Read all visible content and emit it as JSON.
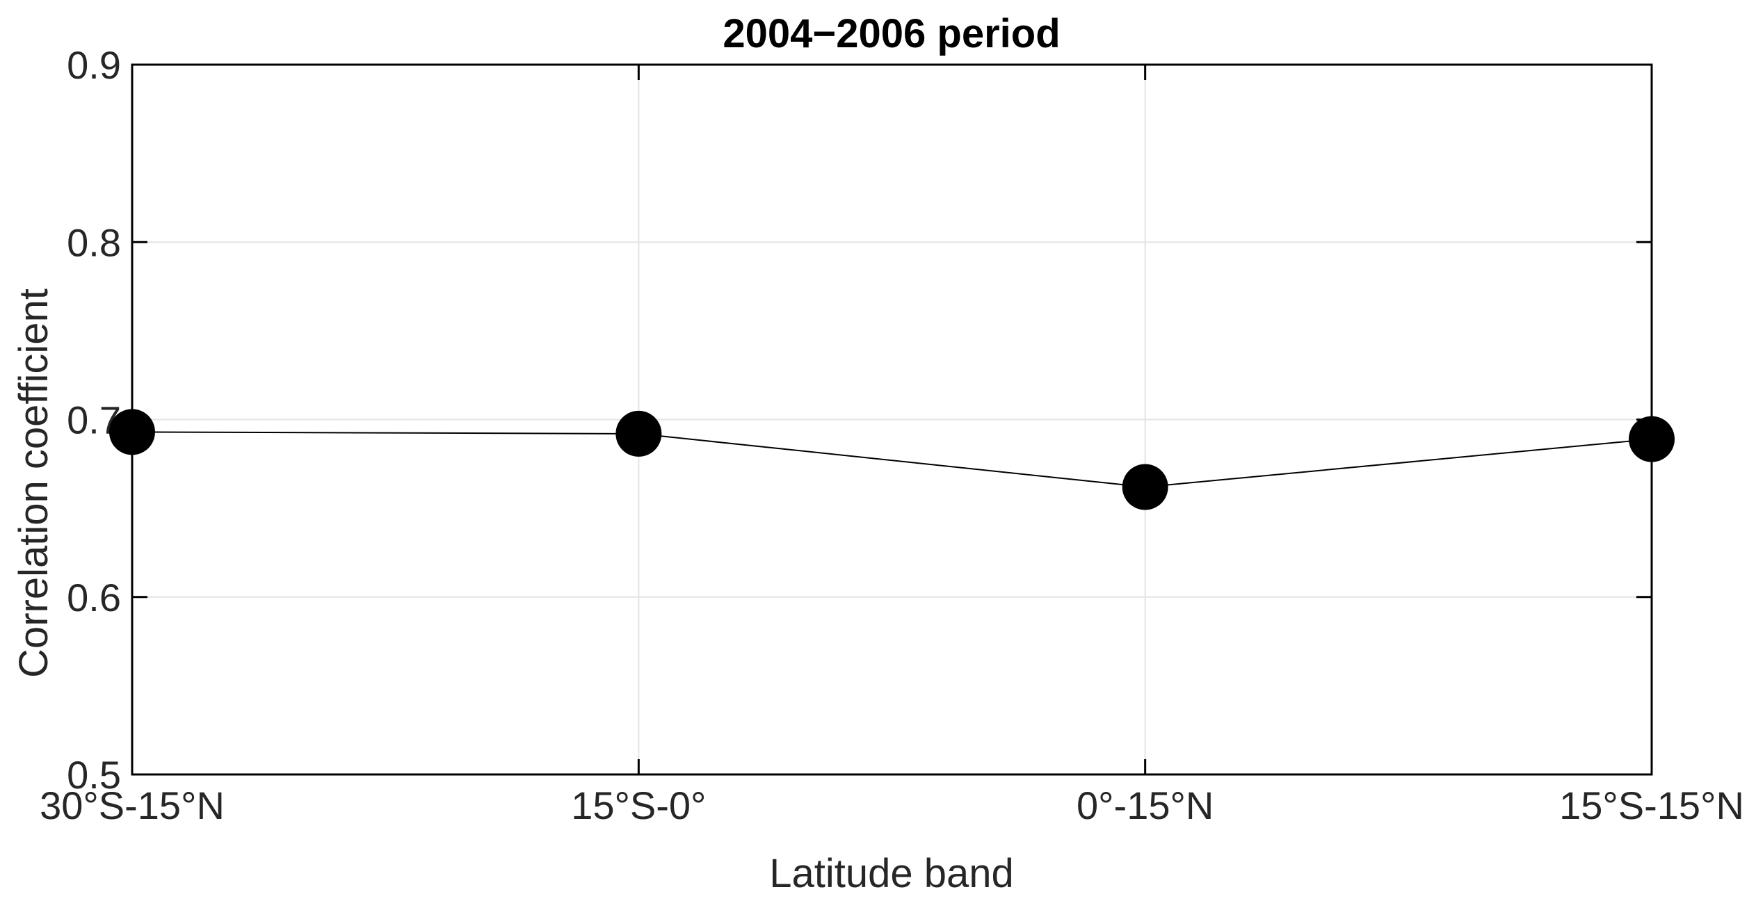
{
  "chart_data": {
    "type": "line",
    "title": "2004−2006 period",
    "xlabel": "Latitude band",
    "ylabel": "Correlation coefficient",
    "categories": [
      "30°S-15°N",
      "15°S-0°",
      "0°-15°N",
      "15°S-15°N"
    ],
    "series": [
      {
        "values": [
          0.693,
          0.692,
          0.662,
          0.689
        ]
      }
    ],
    "ylim": [
      0.5,
      0.9
    ],
    "yticks": [
      "0.5",
      "0.6",
      "0.7",
      "0.8",
      "0.9"
    ],
    "grid": true,
    "colors": {
      "marker": "#000000",
      "line": "#000000",
      "grid": "#e3e3e3",
      "axis": "#000000",
      "text": "#262626"
    }
  }
}
